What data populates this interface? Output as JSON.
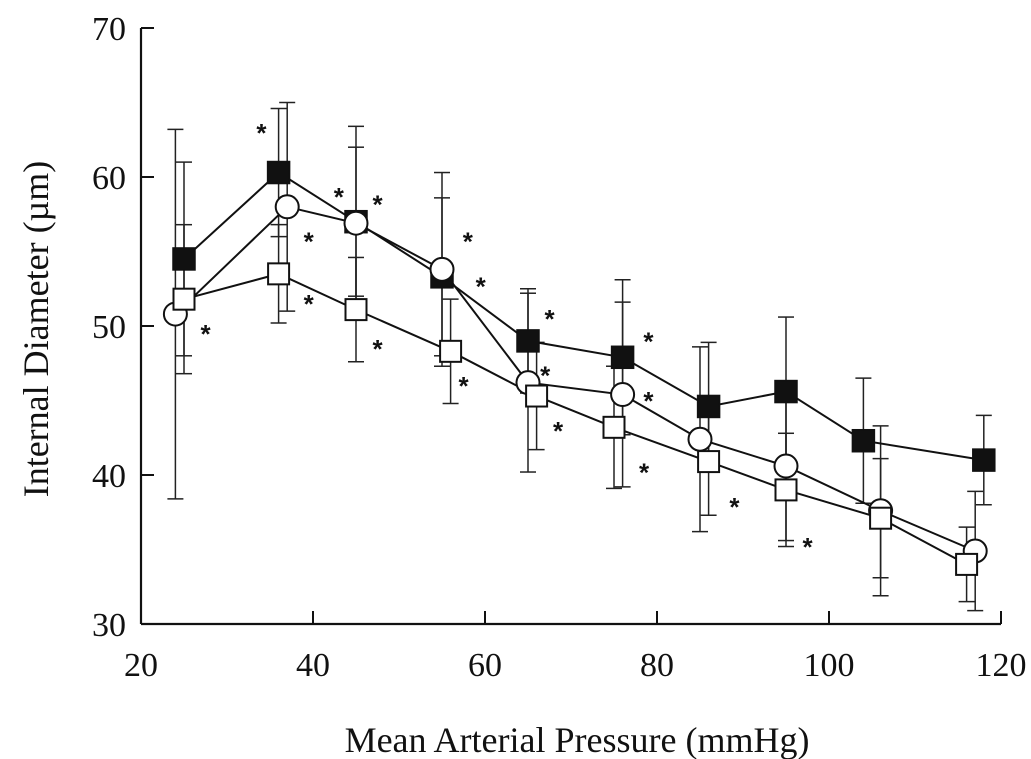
{
  "chart_data": {
    "type": "line",
    "xlabel": "Mean Arterial Pressure (mmHg)",
    "ylabel": "Internal Diameter (µm)",
    "xlim": [
      20,
      120
    ],
    "ylim": [
      30,
      70
    ],
    "xticks": [
      20,
      40,
      60,
      80,
      100,
      120
    ],
    "yticks": [
      30,
      40,
      50,
      60,
      70
    ],
    "grid": false,
    "legend": "none",
    "series": [
      {
        "marker": "filled-square",
        "points": [
          {
            "x": 25,
            "y": 54.5,
            "err": 6.5
          },
          {
            "x": 36,
            "y": 60.3,
            "err": 4.3
          },
          {
            "x": 45,
            "y": 57.0,
            "err": 5.0
          },
          {
            "x": 55,
            "y": 53.3,
            "err": 5.3
          },
          {
            "x": 65,
            "y": 49.0,
            "err": 3.5
          },
          {
            "x": 76,
            "y": 47.9,
            "err": 5.2
          },
          {
            "x": 86,
            "y": 44.6,
            "err": 4.3
          },
          {
            "x": 95,
            "y": 45.6,
            "err": 5.0
          },
          {
            "x": 104,
            "y": 42.3,
            "err": 4.2
          },
          {
            "x": 118,
            "y": 41.0,
            "err": 3.0
          }
        ]
      },
      {
        "marker": "open-circle",
        "points": [
          {
            "x": 24,
            "y": 50.8,
            "err": 12.4
          },
          {
            "x": 37,
            "y": 58.0,
            "err": 7.0
          },
          {
            "x": 45,
            "y": 56.9,
            "err": 6.5
          },
          {
            "x": 55,
            "y": 53.8,
            "err": 6.5
          },
          {
            "x": 65,
            "y": 46.2,
            "err": 6.0
          },
          {
            "x": 76,
            "y": 45.4,
            "err": 6.2
          },
          {
            "x": 85,
            "y": 42.4,
            "err": 6.2
          },
          {
            "x": 95,
            "y": 40.6,
            "err": 5.0
          },
          {
            "x": 106,
            "y": 37.6,
            "err": 5.7
          },
          {
            "x": 117,
            "y": 34.9,
            "err": 4.0
          }
        ]
      },
      {
        "marker": "open-square",
        "points": [
          {
            "x": 25,
            "y": 51.8,
            "err": 5.0
          },
          {
            "x": 36,
            "y": 53.5,
            "err": 3.3
          },
          {
            "x": 45,
            "y": 51.1,
            "err": 3.5
          },
          {
            "x": 56,
            "y": 48.3,
            "err": 3.5
          },
          {
            "x": 66,
            "y": 45.3,
            "err": 3.6
          },
          {
            "x": 75,
            "y": 43.2,
            "err": 4.1
          },
          {
            "x": 86,
            "y": 40.9,
            "err": 3.6
          },
          {
            "x": 95,
            "y": 39.0,
            "err": 3.8
          },
          {
            "x": 106,
            "y": 37.1,
            "err": 4.0
          },
          {
            "x": 116,
            "y": 34.0,
            "err": 2.5
          }
        ]
      }
    ],
    "annotations": [
      {
        "text": "*",
        "x": 27.5,
        "y": 49.8
      },
      {
        "text": "*",
        "x": 34.0,
        "y": 63.3
      },
      {
        "text": "*",
        "x": 39.5,
        "y": 56.0
      },
      {
        "text": "*",
        "x": 39.5,
        "y": 51.8
      },
      {
        "text": "*",
        "x": 43.0,
        "y": 59.0
      },
      {
        "text": "*",
        "x": 47.5,
        "y": 58.5
      },
      {
        "text": "*",
        "x": 47.5,
        "y": 48.8
      },
      {
        "text": "*",
        "x": 58.0,
        "y": 56.0
      },
      {
        "text": "*",
        "x": 59.5,
        "y": 53.0
      },
      {
        "text": "*",
        "x": 57.5,
        "y": 46.3
      },
      {
        "text": "*",
        "x": 67.5,
        "y": 50.8
      },
      {
        "text": "*",
        "x": 67.0,
        "y": 47.0
      },
      {
        "text": "*",
        "x": 68.5,
        "y": 43.3
      },
      {
        "text": "*",
        "x": 79.0,
        "y": 49.3
      },
      {
        "text": "*",
        "x": 79.0,
        "y": 45.3
      },
      {
        "text": "*",
        "x": 78.5,
        "y": 40.5
      },
      {
        "text": "*",
        "x": 89.0,
        "y": 38.2
      },
      {
        "text": "*",
        "x": 97.5,
        "y": 35.5
      }
    ]
  }
}
